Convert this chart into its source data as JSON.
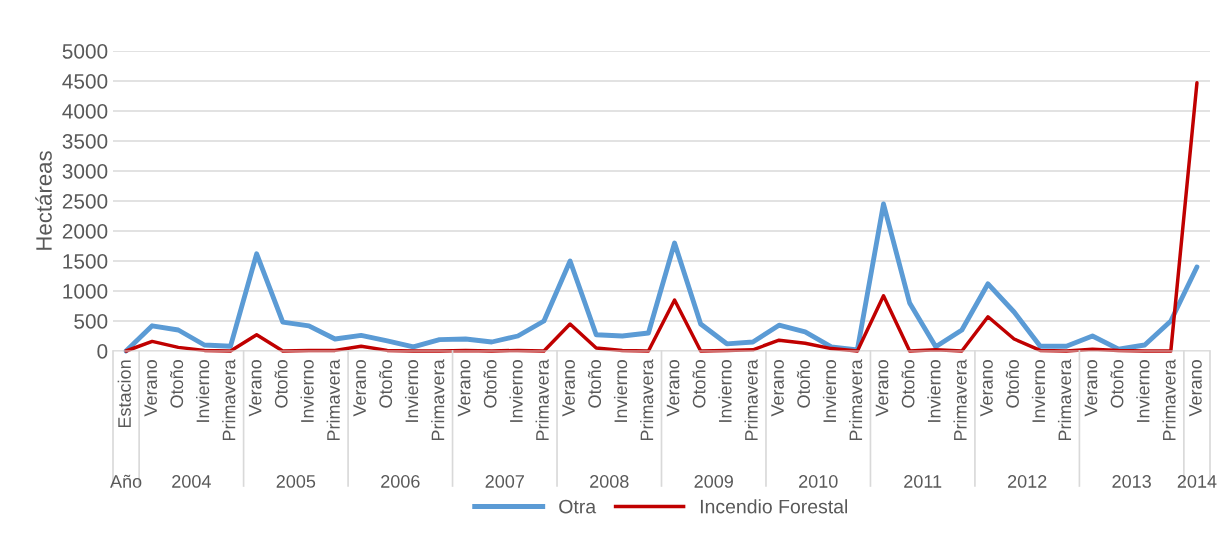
{
  "chart_data": {
    "type": "line",
    "ylabel": "Hectáreas",
    "categories": [
      "Estacion",
      "Verano",
      "Otoño",
      "Invierno",
      "Primavera",
      "Verano",
      "Otoño",
      "Invierno",
      "Primavera",
      "Verano",
      "Otoño",
      "Invierno",
      "Primavera",
      "Verano",
      "Otoño",
      "Invierno",
      "Primavera",
      "Verano",
      "Otoño",
      "Invierno",
      "Primavera",
      "Verano",
      "Otoño",
      "Invierno",
      "Primavera",
      "Verano",
      "Otoño",
      "Invierno",
      "Primavera",
      "Verano",
      "Otoño",
      "Invierno",
      "Primavera",
      "Verano",
      "Otoño",
      "Invierno",
      "Primavera",
      "Verano",
      "Otoño",
      "Invierno",
      "Primavera",
      "Verano"
    ],
    "series": [
      {
        "name": "Otra",
        "color": "#5b9bd5",
        "values": [
          0,
          420,
          350,
          100,
          80,
          1620,
          480,
          420,
          200,
          260,
          170,
          70,
          190,
          200,
          150,
          250,
          500,
          1500,
          270,
          250,
          300,
          1800,
          450,
          120,
          150,
          430,
          320,
          70,
          20,
          2450,
          800,
          70,
          350,
          1120,
          650,
          80,
          80,
          250,
          30,
          100,
          500,
          1400
        ]
      },
      {
        "name": "Incendio Forestal",
        "color": "#c00000",
        "values": [
          0,
          160,
          60,
          10,
          0,
          270,
          0,
          10,
          10,
          80,
          10,
          0,
          0,
          10,
          0,
          10,
          0,
          450,
          50,
          10,
          0,
          850,
          0,
          10,
          20,
          180,
          130,
          40,
          0,
          920,
          0,
          20,
          0,
          570,
          200,
          10,
          0,
          30,
          10,
          0,
          0,
          4470
        ]
      }
    ],
    "annotations": [
      "Año",
      "2004",
      "2005",
      "2006",
      "2007",
      "2008",
      "2009",
      "2010",
      "2011",
      "2012",
      "2013",
      "2014"
    ],
    "ylim": [
      0,
      5000
    ],
    "yticks": [
      0,
      500,
      1000,
      1500,
      2000,
      2500,
      3000,
      3500,
      4000,
      4500,
      5000
    ],
    "grid": "y",
    "legend": "bottom",
    "marker": "none",
    "line_style": "solid"
  }
}
